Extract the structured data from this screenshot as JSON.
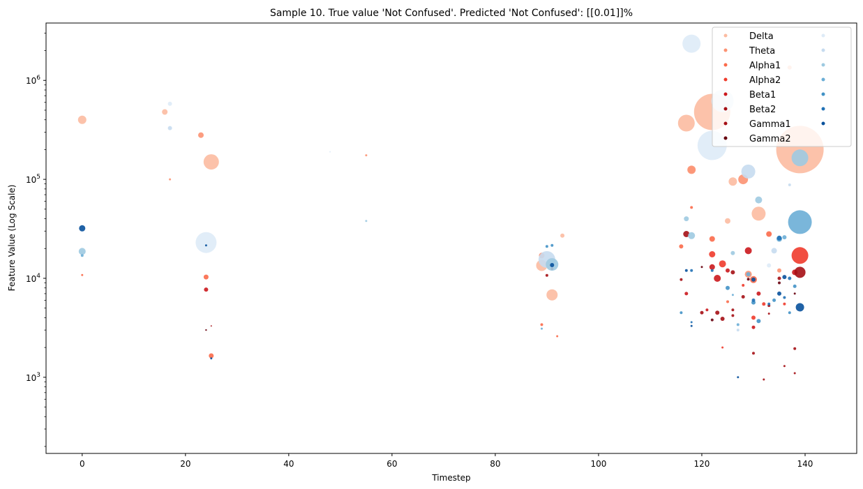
{
  "chart_data": {
    "type": "scatter",
    "title": "Sample 10. True value 'Not Confused'. Predicted 'Not Confused': [[0.01]]%",
    "xlabel": "Timestep",
    "ylabel": "Feature Value (Log Scale)",
    "xlim": [
      -7,
      150
    ],
    "ylim": [
      170,
      3800000
    ],
    "yscale": "log",
    "x_ticks": [
      0,
      20,
      40,
      60,
      80,
      100,
      120,
      140
    ],
    "y_ticks": [
      {
        "value": 1000,
        "base": "10",
        "exp": "3"
      },
      {
        "value": 10000,
        "base": "10",
        "exp": "4"
      },
      {
        "value": 100000,
        "base": "10",
        "exp": "5"
      },
      {
        "value": 1000000,
        "base": "10",
        "exp": "6"
      }
    ],
    "legend_position": "upper right",
    "legend_columns": 2,
    "series": [
      {
        "name": "Delta",
        "color": "#fcbba1",
        "points": [
          {
            "x": 0,
            "y": 400000,
            "s": 6
          },
          {
            "x": 16,
            "y": 480000,
            "s": 4
          },
          {
            "x": 25,
            "y": 150000,
            "s": 11
          },
          {
            "x": 89,
            "y": 13500,
            "s": 8
          },
          {
            "x": 91,
            "y": 6800,
            "s": 8
          },
          {
            "x": 117,
            "y": 370000,
            "s": 12
          },
          {
            "x": 122,
            "y": 480000,
            "s": 26
          },
          {
            "x": 131,
            "y": 45000,
            "s": 10
          },
          {
            "x": 139,
            "y": 200000,
            "s": 34
          },
          {
            "x": 126,
            "y": 95000,
            "s": 6
          },
          {
            "x": 137,
            "y": 1350000,
            "s": 3
          },
          {
            "x": 93,
            "y": 27000,
            "s": 3
          },
          {
            "x": 118,
            "y": 125000,
            "s": 5
          },
          {
            "x": 125,
            "y": 38000,
            "s": 4
          }
        ]
      },
      {
        "name": "Theta",
        "color": "#fc9272",
        "points": [
          {
            "x": 23,
            "y": 280000,
            "s": 4
          },
          {
            "x": 128,
            "y": 100000,
            "s": 7
          },
          {
            "x": 118,
            "y": 125000,
            "s": 6
          },
          {
            "x": 89,
            "y": 17000,
            "s": 4
          },
          {
            "x": 129,
            "y": 11000,
            "s": 5
          },
          {
            "x": 135,
            "y": 12000,
            "s": 3
          },
          {
            "x": 55,
            "y": 175000,
            "s": 1.5
          },
          {
            "x": 17,
            "y": 100000,
            "s": 1.5
          }
        ]
      },
      {
        "name": "Alpha1",
        "color": "#fb6a4a",
        "points": [
          {
            "x": 24,
            "y": 10300,
            "s": 3.5
          },
          {
            "x": 25,
            "y": 1650,
            "s": 3.5
          },
          {
            "x": 116,
            "y": 21000,
            "s": 3
          },
          {
            "x": 122,
            "y": 25000,
            "s": 4
          },
          {
            "x": 130,
            "y": 9700,
            "s": 5
          },
          {
            "x": 133,
            "y": 28000,
            "s": 4
          },
          {
            "x": 92,
            "y": 2600,
            "s": 1.5
          },
          {
            "x": 89,
            "y": 3400,
            "s": 2
          },
          {
            "x": 118,
            "y": 52000,
            "s": 2
          },
          {
            "x": 0,
            "y": 10800,
            "s": 1.5
          },
          {
            "x": 125,
            "y": 5800,
            "s": 2
          }
        ]
      },
      {
        "name": "Alpha2",
        "color": "#ef3b2c",
        "points": [
          {
            "x": 139,
            "y": 17000,
            "s": 12
          },
          {
            "x": 122,
            "y": 17500,
            "s": 4.5
          },
          {
            "x": 124,
            "y": 14000,
            "s": 5
          },
          {
            "x": 130,
            "y": 4000,
            "s": 3
          },
          {
            "x": 132,
            "y": 5500,
            "s": 2.5
          },
          {
            "x": 124,
            "y": 2000,
            "s": 1.5
          },
          {
            "x": 136,
            "y": 5500,
            "s": 2
          },
          {
            "x": 128,
            "y": 8500,
            "s": 2
          }
        ]
      },
      {
        "name": "Beta1",
        "color": "#cb181d",
        "points": [
          {
            "x": 122,
            "y": 13000,
            "s": 4
          },
          {
            "x": 129,
            "y": 19000,
            "s": 5
          },
          {
            "x": 123,
            "y": 10000,
            "s": 5
          },
          {
            "x": 24,
            "y": 7700,
            "s": 3
          },
          {
            "x": 125,
            "y": 12000,
            "s": 3
          },
          {
            "x": 117,
            "y": 7000,
            "s": 2.5
          },
          {
            "x": 130,
            "y": 3200,
            "s": 2.5
          },
          {
            "x": 131,
            "y": 7000,
            "s": 3
          },
          {
            "x": 121,
            "y": 4800,
            "s": 2
          },
          {
            "x": 138,
            "y": 11500,
            "s": 4
          }
        ]
      },
      {
        "name": "Beta2",
        "color": "#a50f15",
        "points": [
          {
            "x": 139,
            "y": 11500,
            "s": 8
          },
          {
            "x": 126,
            "y": 11500,
            "s": 3
          },
          {
            "x": 117,
            "y": 28000,
            "s": 4.5
          },
          {
            "x": 123,
            "y": 4500,
            "s": 3
          },
          {
            "x": 124,
            "y": 3900,
            "s": 3
          },
          {
            "x": 135,
            "y": 10000,
            "s": 2.5
          },
          {
            "x": 130,
            "y": 1750,
            "s": 2
          },
          {
            "x": 138,
            "y": 1950,
            "s": 2
          },
          {
            "x": 132,
            "y": 950,
            "s": 1.5
          },
          {
            "x": 138,
            "y": 1100,
            "s": 1.5
          },
          {
            "x": 126,
            "y": 4200,
            "s": 2
          },
          {
            "x": 91,
            "y": 12500,
            "s": 2
          },
          {
            "x": 90,
            "y": 10700,
            "s": 2
          }
        ]
      },
      {
        "name": "Gamma1",
        "color": "#a50f15",
        "points": [
          {
            "x": 116,
            "y": 9700,
            "s": 2
          },
          {
            "x": 120,
            "y": 4500,
            "s": 2.5
          },
          {
            "x": 128,
            "y": 6500,
            "s": 2.5
          },
          {
            "x": 133,
            "y": 5300,
            "s": 2
          },
          {
            "x": 126,
            "y": 4800,
            "s": 2
          },
          {
            "x": 136,
            "y": 1300,
            "s": 1.5
          },
          {
            "x": 25,
            "y": 3300,
            "s": 1
          },
          {
            "x": 133,
            "y": 4400,
            "s": 1.5
          }
        ]
      },
      {
        "name": "Gamma2",
        "color": "#67000d",
        "points": [
          {
            "x": 135,
            "y": 9000,
            "s": 2
          },
          {
            "x": 129,
            "y": 9800,
            "s": 2
          },
          {
            "x": 122,
            "y": 3800,
            "s": 2
          },
          {
            "x": 120,
            "y": 13000,
            "s": 1.5
          },
          {
            "x": 138,
            "y": 7000,
            "s": 1.5
          },
          {
            "x": 24,
            "y": 3000,
            "s": 1.2
          }
        ]
      },
      {
        "name": "",
        "color": "#deebf7",
        "points": [
          {
            "x": 118,
            "y": 2350000,
            "s": 13
          },
          {
            "x": 122,
            "y": 220000,
            "s": 21
          },
          {
            "x": 24,
            "y": 23000,
            "s": 15
          },
          {
            "x": 124,
            "y": 620000,
            "s": 16
          },
          {
            "x": 17,
            "y": 580000,
            "s": 3
          },
          {
            "x": 133,
            "y": 13500,
            "s": 3
          },
          {
            "x": 48,
            "y": 190000,
            "s": 1
          }
        ]
      },
      {
        "name": "",
        "color": "#c6dbef",
        "points": [
          {
            "x": 129,
            "y": 120000,
            "s": 10
          },
          {
            "x": 90,
            "y": 15500,
            "s": 12
          },
          {
            "x": 17,
            "y": 330000,
            "s": 3
          },
          {
            "x": 137,
            "y": 88000,
            "s": 2
          },
          {
            "x": 134,
            "y": 19000,
            "s": 4
          },
          {
            "x": 127,
            "y": 3000,
            "s": 2
          }
        ]
      },
      {
        "name": "",
        "color": "#9ecae1",
        "points": [
          {
            "x": 139,
            "y": 165000,
            "s": 12
          },
          {
            "x": 0,
            "y": 18700,
            "s": 5
          },
          {
            "x": 131,
            "y": 62000,
            "s": 5
          },
          {
            "x": 117,
            "y": 40000,
            "s": 3.5
          },
          {
            "x": 91,
            "y": 13800,
            "s": 9
          },
          {
            "x": 118,
            "y": 27000,
            "s": 5
          },
          {
            "x": 126,
            "y": 18000,
            "s": 3
          },
          {
            "x": 55,
            "y": 38000,
            "s": 1.5
          }
        ]
      },
      {
        "name": "",
        "color": "#6baed6",
        "points": [
          {
            "x": 139,
            "y": 37000,
            "s": 17
          },
          {
            "x": 135,
            "y": 25000,
            "s": 4
          },
          {
            "x": 0,
            "y": 17000,
            "s": 2
          },
          {
            "x": 136,
            "y": 26000,
            "s": 3
          },
          {
            "x": 129,
            "y": 11000,
            "s": 3
          },
          {
            "x": 127,
            "y": 3400,
            "s": 2
          },
          {
            "x": 89,
            "y": 3100,
            "s": 1.5
          },
          {
            "x": 126,
            "y": 6800,
            "s": 1.5
          }
        ]
      },
      {
        "name": "",
        "color": "#4292c6",
        "points": [
          {
            "x": 131,
            "y": 3700,
            "s": 3
          },
          {
            "x": 125,
            "y": 8000,
            "s": 3
          },
          {
            "x": 134,
            "y": 6000,
            "s": 2.5
          },
          {
            "x": 116,
            "y": 4500,
            "s": 2
          },
          {
            "x": 137,
            "y": 4500,
            "s": 2
          },
          {
            "x": 90,
            "y": 21000,
            "s": 2
          },
          {
            "x": 91,
            "y": 21500,
            "s": 2
          },
          {
            "x": 138,
            "y": 8300,
            "s": 2.5
          },
          {
            "x": 130,
            "y": 5700,
            "s": 3
          }
        ]
      },
      {
        "name": "",
        "color": "#2171b5",
        "points": [
          {
            "x": 135,
            "y": 25500,
            "s": 3.5
          },
          {
            "x": 130,
            "y": 6000,
            "s": 2.5
          },
          {
            "x": 118,
            "y": 12000,
            "s": 2
          },
          {
            "x": 137,
            "y": 10000,
            "s": 2.5
          },
          {
            "x": 122,
            "y": 12000,
            "s": 2
          },
          {
            "x": 136,
            "y": 6400,
            "s": 2
          },
          {
            "x": 133,
            "y": 5500,
            "s": 2
          },
          {
            "x": 118,
            "y": 3600,
            "s": 1.5
          }
        ]
      },
      {
        "name": "",
        "color": "#08519c",
        "points": [
          {
            "x": 0,
            "y": 32000,
            "s": 4.5
          },
          {
            "x": 139,
            "y": 5100,
            "s": 6
          },
          {
            "x": 91,
            "y": 13600,
            "s": 3
          },
          {
            "x": 130,
            "y": 9700,
            "s": 3
          },
          {
            "x": 135,
            "y": 7000,
            "s": 3
          },
          {
            "x": 136,
            "y": 10300,
            "s": 3
          },
          {
            "x": 117,
            "y": 12000,
            "s": 2
          },
          {
            "x": 127,
            "y": 1000,
            "s": 1.5
          },
          {
            "x": 25,
            "y": 1550,
            "s": 1.5
          },
          {
            "x": 24,
            "y": 21500,
            "s": 1.5
          },
          {
            "x": 118,
            "y": 3300,
            "s": 1.5
          }
        ]
      }
    ]
  }
}
